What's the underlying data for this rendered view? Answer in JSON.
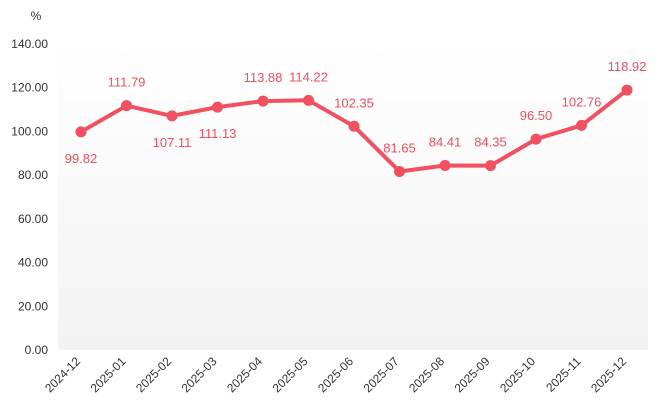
{
  "colors": {
    "series": "#f0505f",
    "plot_bg_top": "#ffffff",
    "plot_bg_bottom": "#f2f2f2",
    "axis": "#333333"
  },
  "chart_data": {
    "type": "line",
    "unit_label": "%",
    "categories": [
      "2024-12",
      "2025-01",
      "2025-02",
      "2025-03",
      "2025-04",
      "2025-05",
      "2025-06",
      "2025-07",
      "2025-08",
      "2025-09",
      "2025-10",
      "2025-11",
      "2025-12"
    ],
    "series": [
      {
        "values": [
          99.82,
          111.79,
          107.11,
          111.13,
          113.88,
          114.22,
          102.35,
          81.65,
          84.41,
          84.35,
          96.5,
          102.76,
          118.92
        ],
        "labels": [
          "99.82",
          "111.79",
          "107.11",
          "111.13",
          "113.88",
          "114.22",
          "102.35",
          "81.65",
          "84.41",
          "84.35",
          "96.50",
          "102.76",
          "118.92"
        ],
        "label_position": [
          "below",
          "above",
          "below",
          "below",
          "above",
          "above",
          "above",
          "above",
          "above",
          "above",
          "above",
          "above",
          "above"
        ]
      }
    ],
    "ylim": [
      0,
      140
    ],
    "yticks": [
      "0.00",
      "20.00",
      "40.00",
      "60.00",
      "80.00",
      "100.00",
      "120.00",
      "140.00"
    ],
    "grid": false,
    "legend": "none",
    "marker": "circle",
    "background": "vertical gradient white to light grey"
  }
}
